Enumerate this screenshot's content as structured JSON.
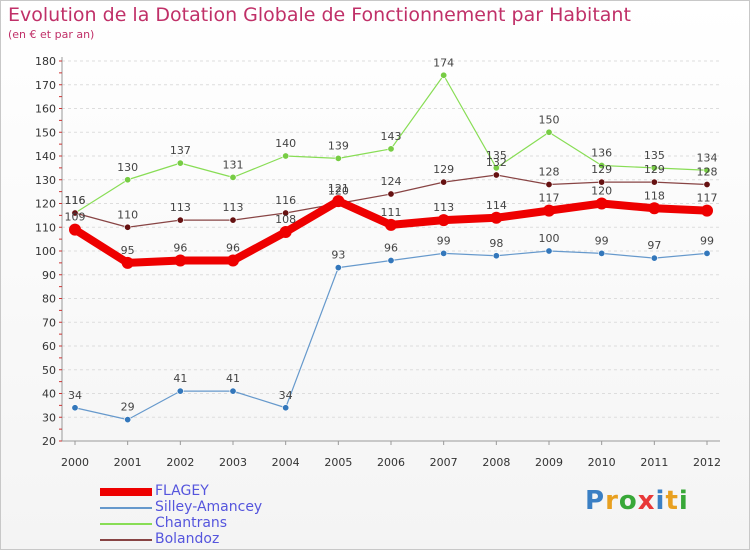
{
  "title": "Evolution de la Dotation Globale de Fonctionnement par Habitant",
  "subtitle": "(en € et par an)",
  "logo": {
    "text": "Proxiti",
    "colors": [
      "#3a7fc4",
      "#e8a020",
      "#38a838",
      "#e83838",
      "#3a7fc4",
      "#e8a020",
      "#38a838"
    ]
  },
  "chart_data": {
    "type": "line",
    "title": "Evolution de la Dotation Globale de Fonctionnement par Habitant",
    "subtitle": "(en € et par an)",
    "x": [
      2000,
      2001,
      2002,
      2003,
      2004,
      2005,
      2006,
      2007,
      2008,
      2009,
      2010,
      2011,
      2012
    ],
    "ylim": [
      20,
      180
    ],
    "yticks": [
      20,
      30,
      40,
      50,
      60,
      70,
      80,
      90,
      100,
      110,
      120,
      130,
      140,
      150,
      160,
      170,
      180
    ],
    "grid": "horizontal dashed",
    "legend": "bottom-left",
    "series": [
      {
        "name": "FLAGEY",
        "color": "#ee0000",
        "values": [
          109,
          95,
          96,
          96,
          108,
          121,
          111,
          113,
          114,
          117,
          120,
          118,
          117
        ]
      },
      {
        "name": "Silley-Amancey",
        "color": "#6699cc",
        "values": [
          34,
          29,
          41,
          41,
          34,
          93,
          96,
          99,
          98,
          100,
          99,
          97,
          99
        ]
      },
      {
        "name": "Chantrans",
        "color": "#88dd55",
        "values": [
          116,
          130,
          137,
          131,
          140,
          139,
          143,
          174,
          135,
          150,
          136,
          135,
          134
        ]
      },
      {
        "name": "Bolandoz",
        "color": "#772222",
        "values": [
          116,
          110,
          113,
          113,
          116,
          120,
          124,
          129,
          132,
          128,
          129,
          129,
          128
        ]
      }
    ]
  }
}
